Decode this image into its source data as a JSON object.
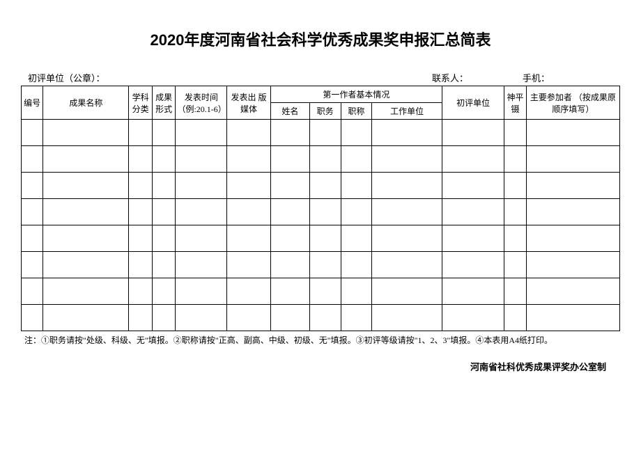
{
  "title": "2020年度河南省社会科学优秀成果奖申报汇总简表",
  "header": {
    "unit_label": "初评单位（公章）：",
    "contact_label": "联系人：",
    "phone_label": "手机："
  },
  "columns": {
    "id": "编号",
    "name": "成果名称",
    "category": "学科分类",
    "form": "成果形式",
    "time": "发表时间（例:20.1-6）",
    "media": "发表出 版媒体",
    "author_group": "第一作者基本情况",
    "author_name": "姓名",
    "author_duty": "职务",
    "author_title": "职称",
    "author_unit": "工作单位",
    "review_unit": "初评单位",
    "level": "神平镊",
    "participants": "主要参加者 （按成果原顺序填写）"
  },
  "note": "注：①职务请按\"处级、科级、无\"填报。②职称请按\"正高、副高、中级、初级、无\"填报。③初评等级请按\"1、2、3\"填报。④本表用A4纸打印。",
  "footer": "河南省社科优秀成果评奖办公室制",
  "data_row_count": 8
}
